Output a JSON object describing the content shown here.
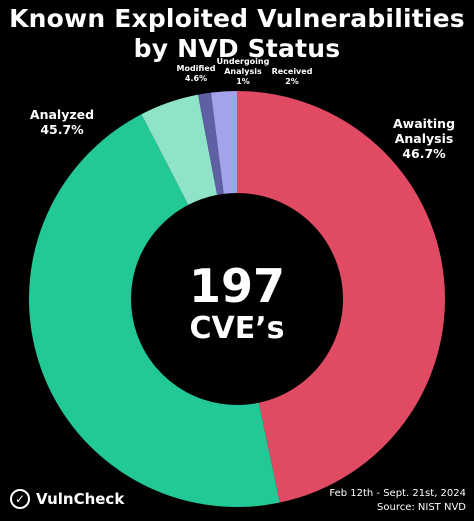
{
  "chart": {
    "title_line1": "Known Exploited Vulnerabilities",
    "title_line2": "by NVD Status",
    "center_value": "197",
    "center_label": "CVE’s"
  },
  "footer": {
    "brand": "VulnCheck",
    "date_range": "Feb 12th - Sept. 21st, 2024",
    "source": "Source: NIST NVD"
  },
  "chart_data": {
    "type": "pie",
    "variant": "donut",
    "title": "Known Exploited Vulnerabilities by NVD Status",
    "total": 197,
    "total_label": "CVE’s",
    "slices": [
      {
        "label": "Awaiting Analysis",
        "label_lines": [
          "Awaiting",
          "Analysis"
        ],
        "value": 46.7,
        "value_text": "46.7%",
        "color": "#e04a63"
      },
      {
        "label": "Analyzed",
        "label_lines": [
          "Analyzed"
        ],
        "value": 45.7,
        "value_text": "45.7%",
        "color": "#22c896"
      },
      {
        "label": "Modified",
        "label_lines": [
          "Modified"
        ],
        "value": 4.6,
        "value_text": "4.6%",
        "color": "#8fe3c8"
      },
      {
        "label": "Undergoing Analysis",
        "label_lines": [
          "Undergoing",
          "Analysis"
        ],
        "value": 1,
        "value_text": "1%",
        "color": "#5f5fa3"
      },
      {
        "label": "Received",
        "label_lines": [
          "Received"
        ],
        "value": 2,
        "value_text": "2%",
        "color": "#a3a3ec"
      }
    ]
  }
}
